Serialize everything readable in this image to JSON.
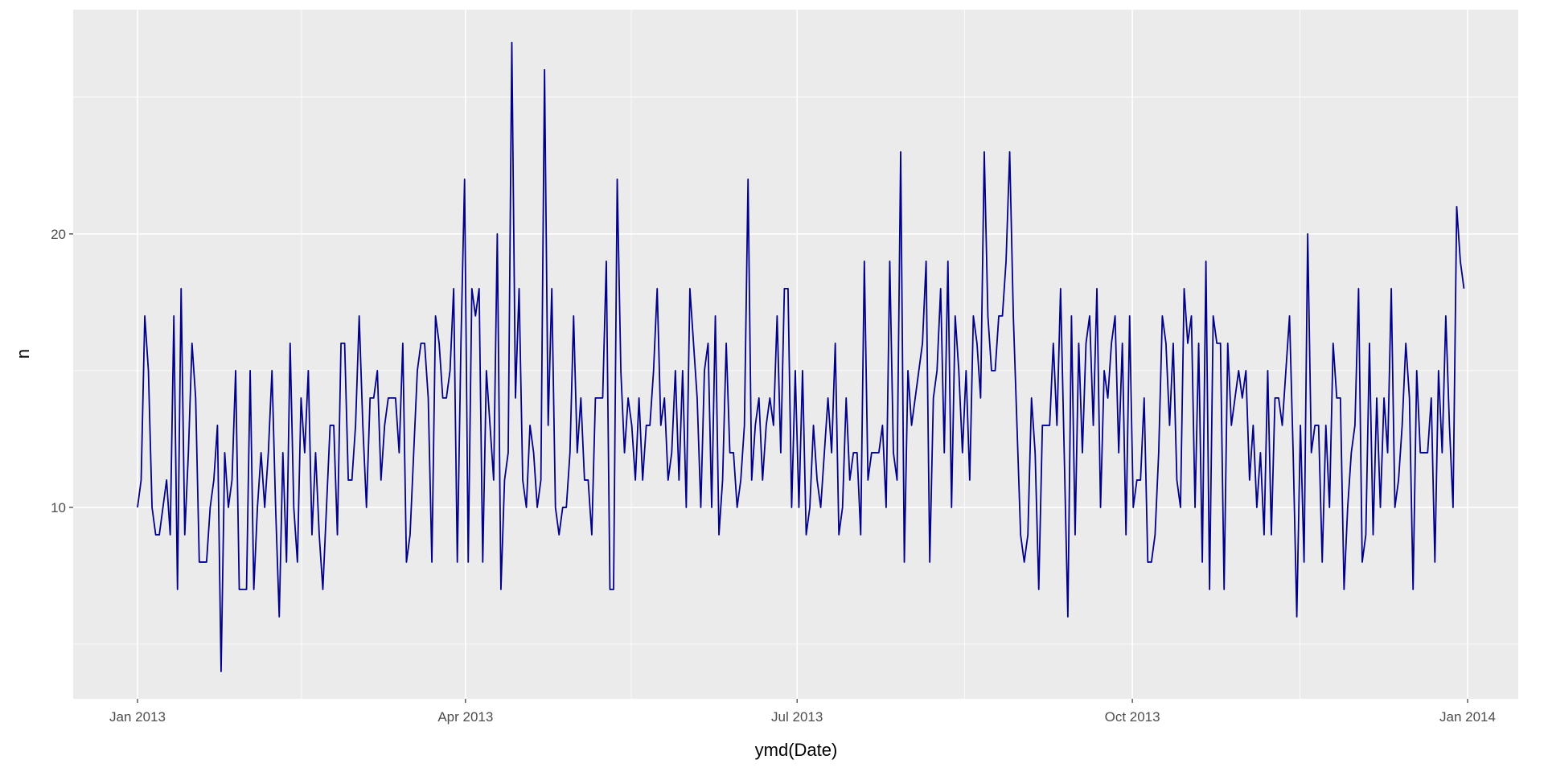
{
  "chart_data": {
    "type": "line",
    "title": "",
    "xlabel": "ymd(Date)",
    "ylabel": "n",
    "x_start": "2013-01-01",
    "x_step": "1 day",
    "x_ticks": [
      "Jan 2013",
      "Apr 2013",
      "Jul 2013",
      "Oct 2013",
      "Jan 2014"
    ],
    "x_tick_days": [
      0,
      90,
      181,
      273,
      365
    ],
    "y_ticks": [
      10,
      20
    ],
    "ylim": [
      3.0,
      28.2
    ],
    "xlim_days": [
      -15,
      381
    ],
    "grid": true,
    "line_color": "#00008B",
    "panel_color": "#EBEBEB",
    "series": [
      {
        "name": "n",
        "values": [
          10,
          11,
          17,
          15,
          10,
          9,
          9,
          10,
          11,
          9,
          17,
          7,
          18,
          9,
          12,
          16,
          14,
          8,
          8,
          8,
          10,
          11,
          13,
          4,
          12,
          10,
          11,
          15,
          7,
          7,
          7,
          15,
          7,
          10,
          12,
          10,
          12,
          15,
          10,
          6,
          12,
          8,
          16,
          10,
          8,
          14,
          12,
          15,
          9,
          12,
          9,
          7,
          10,
          13,
          13,
          9,
          16,
          16,
          11,
          11,
          13,
          17,
          13,
          10,
          14,
          14,
          15,
          11,
          13,
          14,
          14,
          14,
          12,
          16,
          8,
          9,
          12,
          15,
          16,
          16,
          14,
          8,
          17,
          16,
          14,
          14,
          15,
          18,
          8,
          16,
          22,
          8,
          18,
          17,
          18,
          8,
          15,
          13,
          11,
          20,
          7,
          11,
          12,
          27,
          14,
          18,
          11,
          10,
          13,
          12,
          10,
          11,
          26,
          13,
          18,
          10,
          9,
          10,
          10,
          12,
          17,
          12,
          14,
          11,
          11,
          9,
          14,
          14,
          14,
          19,
          7,
          7,
          22,
          15,
          12,
          14,
          13,
          11,
          14,
          11,
          13,
          13,
          15,
          18,
          13,
          14,
          11,
          12,
          15,
          11,
          15,
          10,
          18,
          16,
          14,
          10,
          15,
          16,
          10,
          17,
          9,
          11,
          16,
          12,
          12,
          10,
          11,
          13,
          22,
          11,
          13,
          14,
          11,
          13,
          14,
          13,
          17,
          12,
          18,
          18,
          10,
          15,
          10,
          15,
          9,
          10,
          13,
          11,
          10,
          12,
          14,
          12,
          16,
          9,
          10,
          14,
          11,
          12,
          12,
          9,
          19,
          11,
          12,
          12,
          12,
          13,
          10,
          19,
          12,
          11,
          23,
          8,
          15,
          13,
          14,
          15,
          16,
          19,
          8,
          14,
          15,
          18,
          12,
          19,
          10,
          17,
          15,
          12,
          15,
          11,
          17,
          16,
          14,
          23,
          17,
          15,
          15,
          17,
          17,
          19,
          23,
          17,
          13,
          9,
          8,
          9,
          14,
          12,
          7,
          13,
          13,
          13,
          16,
          13,
          18,
          12,
          6,
          17,
          9,
          16,
          12,
          16,
          17,
          13,
          18,
          10,
          15,
          14,
          16,
          17,
          12,
          16,
          9,
          17,
          10,
          11,
          11,
          14,
          8,
          8,
          9,
          12,
          17,
          16,
          13,
          16,
          11,
          10,
          18,
          16,
          17,
          10,
          16,
          8,
          19,
          7,
          17,
          16,
          16,
          7,
          16,
          13,
          14,
          15,
          14,
          15,
          11,
          13,
          10,
          12,
          9,
          15,
          9,
          14,
          14,
          13,
          15,
          17,
          12,
          6,
          13,
          8,
          20,
          12,
          13,
          13,
          8,
          13,
          10,
          16,
          14,
          14,
          7,
          10,
          12,
          13,
          18,
          8,
          9,
          16,
          9,
          14,
          10,
          14,
          12,
          18,
          10,
          11,
          13,
          16,
          14,
          7,
          15,
          12,
          12,
          12,
          14,
          8,
          15,
          12,
          17,
          13,
          10,
          21,
          19,
          18
        ]
      }
    ]
  }
}
